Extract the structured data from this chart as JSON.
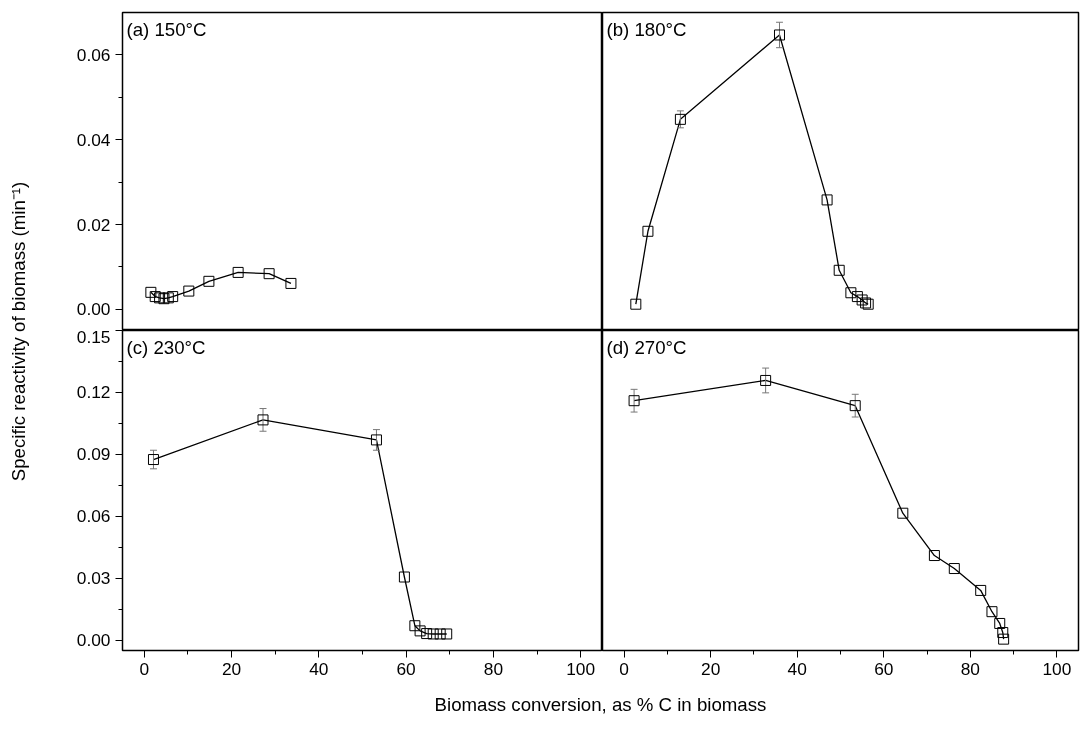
{
  "chart_data": [
    {
      "type": "line",
      "title": "(a) 150°C",
      "ylabel": "Specific reactivity of biomass (min⁻¹)",
      "marker": "square",
      "tick_labels": "y",
      "xlim": [
        -5,
        105
      ],
      "ylim": [
        -0.005,
        0.07
      ],
      "yticks": [
        {
          "value": 0,
          "label": "0.00"
        },
        {
          "value": 0.02,
          "label": "0.02"
        },
        {
          "value": 0.04,
          "label": "0.04"
        },
        {
          "value": 0.06,
          "label": "0.06"
        }
      ],
      "x": [
        1.5,
        2.5,
        3.5,
        4.5,
        5.5,
        6.5,
        10.2,
        14.8,
        21.5,
        28.6,
        33.6
      ],
      "series": [
        {
          "color": "#000000",
          "values": [
            0.004,
            0.003,
            0.0027,
            0.0025,
            0.0027,
            0.003,
            0.0043,
            0.0066,
            0.0087,
            0.0084,
            0.0061
          ]
        }
      ]
    },
    {
      "type": "line",
      "title": "(b) 180°C",
      "marker": "square",
      "tick_labels": false,
      "xlim": [
        -5,
        105
      ],
      "ylim": [
        -0.005,
        0.07
      ],
      "x": [
        2.7,
        5.5,
        13.0,
        35.9,
        46.9,
        49.7,
        52.4,
        53.9,
        55.0,
        55.8,
        56.4
      ],
      "series": [
        {
          "color": "#000000",
          "values": [
            0.0012,
            0.0184,
            0.0448,
            0.0647,
            0.0258,
            0.0092,
            0.0039,
            0.003,
            0.0022,
            0.0015,
            0.0012
          ],
          "errors": [
            null,
            null,
            0.002,
            0.003,
            null,
            null,
            null,
            null,
            null,
            null,
            null
          ]
        }
      ]
    },
    {
      "type": "line",
      "title": "(c) 230°C",
      "xlabel": "Biomass conversion, as % C in biomass",
      "marker": "square",
      "xlim": [
        -5,
        105
      ],
      "ylim": [
        -0.005,
        0.15
      ],
      "xticks": [
        0,
        20,
        40,
        60,
        80,
        100
      ],
      "yticks": [
        {
          "value": 0,
          "label": "0.00"
        },
        {
          "value": 0.03,
          "label": "0.03"
        },
        {
          "value": 0.06,
          "label": "0.06"
        },
        {
          "value": 0.09,
          "label": "0.09"
        },
        {
          "value": 0.12,
          "label": "0.12"
        },
        {
          "value": 0.15,
          "label": "0.15"
        }
      ],
      "x": [
        2.1,
        27.2,
        53.2,
        59.6,
        62.0,
        63.2,
        64.7,
        66.2,
        67.8,
        69.3
      ],
      "series": [
        {
          "color": "#000000",
          "values": [
            0.0875,
            0.1067,
            0.097,
            0.0306,
            0.007,
            0.0045,
            0.0032,
            0.003,
            0.003,
            0.003
          ],
          "errors": [
            0.0045,
            0.0055,
            0.005,
            null,
            null,
            null,
            null,
            null,
            null,
            null
          ]
        }
      ]
    },
    {
      "type": "line",
      "title": "(d) 270°C",
      "marker": "square",
      "tick_labels": "x",
      "xlim": [
        -5,
        105
      ],
      "ylim": [
        -0.005,
        0.15
      ],
      "xticks": [
        0,
        20,
        40,
        60,
        80,
        100
      ],
      "x": [
        2.3,
        32.7,
        53.4,
        64.4,
        71.7,
        76.3,
        82.4,
        85.0,
        86.8,
        87.5,
        87.7
      ],
      "series": [
        {
          "color": "#000000",
          "values": [
            0.116,
            0.1258,
            0.1136,
            0.0615,
            0.041,
            0.0347,
            0.0241,
            0.0138,
            0.0081,
            0.0037,
            0.0005
          ],
          "errors": [
            0.0055,
            0.006,
            0.0055,
            null,
            null,
            null,
            null,
            null,
            null,
            null,
            null
          ]
        }
      ]
    }
  ]
}
